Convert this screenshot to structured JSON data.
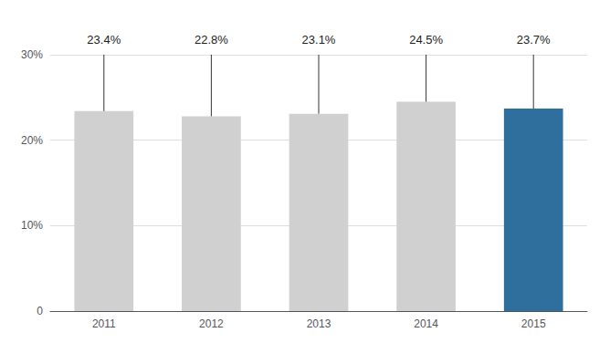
{
  "chart_data": {
    "type": "bar",
    "categories": [
      "2011",
      "2012",
      "2013",
      "2014",
      "2015"
    ],
    "values": [
      23.4,
      22.8,
      23.1,
      24.5,
      23.7
    ],
    "colors": [
      "#d0d0d0",
      "#d0d0d0",
      "#d0d0d0",
      "#d0d0d0",
      "#2e6f9e"
    ],
    "data_labels": true,
    "value_labels": [
      "23.4%",
      "22.8%",
      "23.1%",
      "24.5%",
      "23.7%"
    ],
    "ylim": [
      0,
      30
    ],
    "yticks": [
      0,
      {
        "value": 10,
        "label": "10%"
      },
      {
        "value": 20,
        "label": "20%"
      },
      {
        "value": 30,
        "label": "30%"
      }
    ],
    "grid": true
  }
}
